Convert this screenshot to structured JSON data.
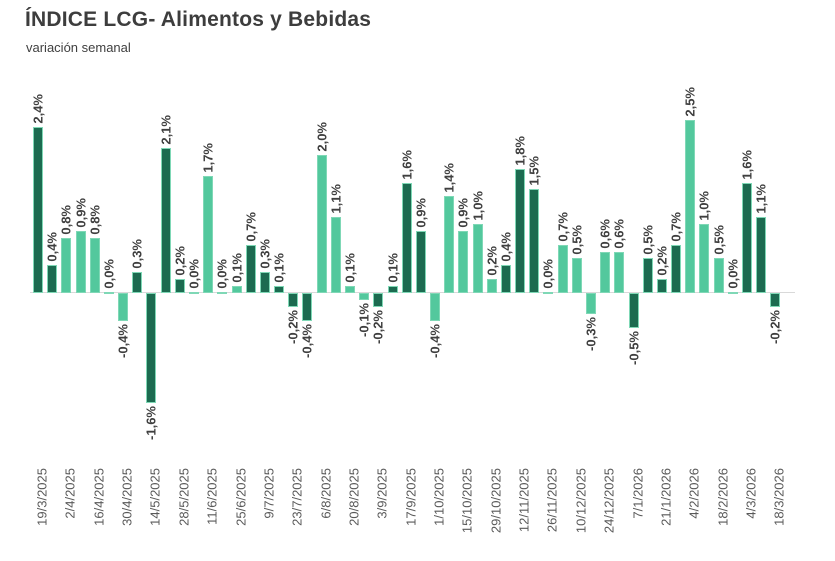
{
  "header": {
    "title": "ÍNDICE LCG- Alimentos y Bebidas",
    "subtitle": "variación semanal"
  },
  "chart_data": {
    "type": "bar",
    "title": "ÍNDICE LCG- Alimentos y Bebidas",
    "subtitle": "variación semanal",
    "unit": "%",
    "decimal_separator": ",",
    "legend": "none",
    "grid": "off",
    "ylim": [
      -1.6,
      2.5
    ],
    "colors": {
      "dark": "#1c6b50",
      "light": "#53c89d",
      "bar_border": "#7fd8b6",
      "axis": "#d9d9d9"
    },
    "x_tick_labels": [
      "19/3/2025",
      "2/4/2025",
      "16/4/2025",
      "30/4/2025",
      "14/5/2025",
      "28/5/2025",
      "11/6/2025",
      "25/6/2025",
      "9/7/2025",
      "23/7/2025",
      "6/8/2025",
      "20/8/2025",
      "3/9/2025",
      "17/9/2025",
      "1/10/2025",
      "15/10/2025",
      "29/10/2025",
      "12/11/2025",
      "26/11/2025",
      "10/12/2025",
      "24/12/2025",
      "7/1/2026",
      "21/1/2026",
      "4/2/2026",
      "18/2/2026",
      "4/3/2026",
      "18/3/2026"
    ],
    "bars": [
      {
        "value": 2.4,
        "label": "2,4%",
        "color": "dark",
        "tick": "19/3/2025"
      },
      {
        "value": 0.4,
        "label": "0,4%",
        "color": "dark"
      },
      {
        "value": 0.8,
        "label": "0,8%",
        "color": "light",
        "tick": "2/4/2025"
      },
      {
        "value": 0.9,
        "label": "0,9%",
        "color": "light"
      },
      {
        "value": 0.8,
        "label": "0,8%",
        "color": "light",
        "tick": "16/4/2025"
      },
      {
        "value": 0.0,
        "label": "0,0%",
        "color": "light"
      },
      {
        "value": -0.4,
        "label": "-0,4%",
        "color": "light",
        "tick": "30/4/2025"
      },
      {
        "value": 0.3,
        "label": "0,3%",
        "color": "dark"
      },
      {
        "value": -1.6,
        "label": "-1,6%",
        "color": "dark",
        "tick": "14/5/2025"
      },
      {
        "value": 2.1,
        "label": "2,1%",
        "color": "dark"
      },
      {
        "value": 0.2,
        "label": "0,2%",
        "color": "dark",
        "tick": "28/5/2025"
      },
      {
        "value": 0.0,
        "label": "0,0%",
        "color": "light"
      },
      {
        "value": 1.7,
        "label": "1,7%",
        "color": "light",
        "tick": "11/6/2025"
      },
      {
        "value": 0.0,
        "label": "0,0%",
        "color": "light"
      },
      {
        "value": 0.1,
        "label": "0,1%",
        "color": "light",
        "tick": "25/6/2025"
      },
      {
        "value": 0.7,
        "label": "0,7%",
        "color": "dark"
      },
      {
        "value": 0.3,
        "label": "0,3%",
        "color": "dark",
        "tick": "9/7/2025"
      },
      {
        "value": 0.1,
        "label": "0,1%",
        "color": "dark"
      },
      {
        "value": -0.2,
        "label": "-0,2%",
        "color": "dark",
        "tick": "23/7/2025"
      },
      {
        "value": -0.4,
        "label": "-0,4%",
        "color": "dark"
      },
      {
        "value": 2.0,
        "label": "2,0%",
        "color": "light",
        "tick": "6/8/2025"
      },
      {
        "value": 1.1,
        "label": "1,1%",
        "color": "light"
      },
      {
        "value": 0.1,
        "label": "0,1%",
        "color": "light",
        "tick": "20/8/2025"
      },
      {
        "value": -0.1,
        "label": "-0,1%",
        "color": "light"
      },
      {
        "value": -0.2,
        "label": "-0,2%",
        "color": "dark",
        "tick": "3/9/2025"
      },
      {
        "value": 0.1,
        "label": "0,1%",
        "color": "dark"
      },
      {
        "value": 1.6,
        "label": "1,6%",
        "color": "dark",
        "tick": "17/9/2025"
      },
      {
        "value": 0.9,
        "label": "0,9%",
        "color": "dark"
      },
      {
        "value": -0.4,
        "label": "-0,4%",
        "color": "light",
        "tick": "1/10/2025"
      },
      {
        "value": 1.4,
        "label": "1,4%",
        "color": "light"
      },
      {
        "value": 0.9,
        "label": "0,9%",
        "color": "light",
        "tick": "15/10/2025"
      },
      {
        "value": 1.0,
        "label": "1,0%",
        "color": "light"
      },
      {
        "value": 0.2,
        "label": "0,2%",
        "color": "light",
        "tick": "29/10/2025"
      },
      {
        "value": 0.4,
        "label": "0,4%",
        "color": "dark"
      },
      {
        "value": 1.8,
        "label": "1,8%",
        "color": "dark",
        "tick": "12/11/2025"
      },
      {
        "value": 1.5,
        "label": "1,5%",
        "color": "dark"
      },
      {
        "value": 0.0,
        "label": "0,0%",
        "color": "dark",
        "tick": "26/11/2025"
      },
      {
        "value": 0.7,
        "label": "0,7%",
        "color": "light"
      },
      {
        "value": 0.5,
        "label": "0,5%",
        "color": "light",
        "tick": "10/12/2025"
      },
      {
        "value": -0.3,
        "label": "-0,3%",
        "color": "light"
      },
      {
        "value": 0.6,
        "label": "0,6%",
        "color": "light",
        "tick": "24/12/2025"
      },
      {
        "value": 0.6,
        "label": "0,6%",
        "color": "light"
      },
      {
        "value": -0.5,
        "label": "-0,5%",
        "color": "dark",
        "tick": "7/1/2026"
      },
      {
        "value": 0.5,
        "label": "0,5%",
        "color": "dark"
      },
      {
        "value": 0.2,
        "label": "0,2%",
        "color": "dark",
        "tick": "21/1/2026"
      },
      {
        "value": 0.7,
        "label": "0,7%",
        "color": "dark"
      },
      {
        "value": 2.5,
        "label": "2,5%",
        "color": "light",
        "tick": "4/2/2026"
      },
      {
        "value": 1.0,
        "label": "1,0%",
        "color": "light"
      },
      {
        "value": 0.5,
        "label": "0,5%",
        "color": "light",
        "tick": "18/2/2026"
      },
      {
        "value": 0.0,
        "label": "0,0%",
        "color": "light"
      },
      {
        "value": 1.6,
        "label": "1,6%",
        "color": "dark",
        "tick": "4/3/2026"
      },
      {
        "value": 1.1,
        "label": "1,1%",
        "color": "dark"
      },
      {
        "value": -0.2,
        "label": "-0,2%",
        "color": "dark",
        "tick": "18/3/2026"
      }
    ]
  }
}
